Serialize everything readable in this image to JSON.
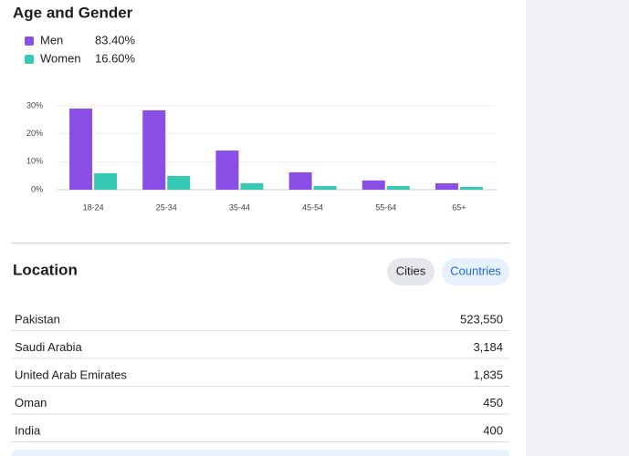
{
  "age_gender": {
    "title": "Age and Gender"
  },
  "chart_data": {
    "type": "bar",
    "categories": [
      "18-24",
      "25-34",
      "35-44",
      "45-54",
      "55-64",
      "65+"
    ],
    "series": [
      {
        "name": "Men",
        "color": "#8a4ee6",
        "values": [
          29.0,
          28.4,
          14.0,
          6.2,
          3.3,
          2.3
        ]
      },
      {
        "name": "Women",
        "color": "#35c9b4",
        "values": [
          5.9,
          4.9,
          2.3,
          1.3,
          1.3,
          1.0
        ]
      }
    ],
    "legend_values": [
      "83.40%",
      "16.60%"
    ],
    "ylim": [
      0,
      30
    ],
    "yticks": [
      {
        "value": 0,
        "label": "0%"
      },
      {
        "value": 10,
        "label": "10%"
      },
      {
        "value": 20,
        "label": "20%"
      },
      {
        "value": 30,
        "label": "30%"
      }
    ],
    "grid": true
  },
  "location": {
    "title": "Location",
    "buttons": [
      "Cities",
      "Countries"
    ],
    "rows": [
      [
        "Pakistan",
        "523,550"
      ],
      [
        "Saudi Arabia",
        "3,184"
      ],
      [
        "United Arab Emirates",
        "1,835"
      ],
      [
        "Oman",
        "450"
      ],
      [
        "India",
        "400"
      ]
    ]
  }
}
